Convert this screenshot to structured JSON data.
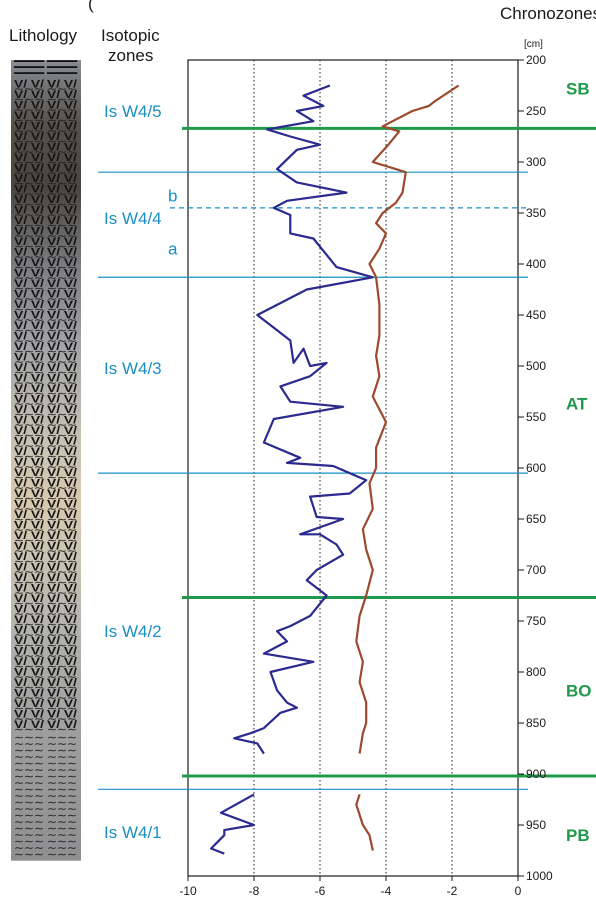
{
  "headers": {
    "top_fragment": "(",
    "lithology": "Lithology",
    "isotopic": "Isotopic",
    "zones": "zones",
    "chronozones": "Chronozones",
    "depth_unit": "[cm]"
  },
  "colors": {
    "isotope_line": "#1b8fc4",
    "chrono_line": "#1f9a4a",
    "series_a": "#2a2a8f",
    "series_b": "#9c4a2e"
  },
  "isotopic_zones": [
    {
      "label": "Is W4/5",
      "depth": 250
    },
    {
      "label": "Is W4/4",
      "depth": 355
    },
    {
      "label": "Is W4/3",
      "depth": 502
    },
    {
      "label": "Is W4/2",
      "depth": 760
    },
    {
      "label": "Is W4/1",
      "depth": 957
    }
  ],
  "subzone_labels": [
    {
      "label": "b",
      "depth": 333
    },
    {
      "label": "a",
      "depth": 385
    }
  ],
  "zone_boundaries": [
    {
      "depth": 310,
      "style": "solid"
    },
    {
      "depth": 345,
      "style": "dashed"
    },
    {
      "depth": 413,
      "style": "solid"
    },
    {
      "depth": 605,
      "style": "solid"
    },
    {
      "depth": 915,
      "style": "solid"
    }
  ],
  "chronozones": [
    {
      "label": "SB",
      "depth": 228
    },
    {
      "label": "AT",
      "depth": 537
    },
    {
      "label": "BO",
      "depth": 818
    },
    {
      "label": "PB",
      "depth": 960
    }
  ],
  "chrono_boundaries": [
    267,
    727,
    902
  ],
  "lithology": {
    "dark_layers": {
      "top": 200,
      "bottom": 218
    },
    "v_layers": {
      "top": 218,
      "bottom": 862
    },
    "wave_layers": {
      "top": 862,
      "bottom": 985
    }
  },
  "chart_data": {
    "type": "line",
    "xlim": [
      -10,
      0
    ],
    "ylim": [
      1000,
      200
    ],
    "y_inverted": true,
    "xticks": [
      -10,
      -8,
      -6,
      -4,
      -2,
      0
    ],
    "yticks": [
      200,
      250,
      300,
      350,
      400,
      450,
      500,
      550,
      600,
      650,
      700,
      750,
      800,
      850,
      900,
      950,
      1000
    ],
    "ylabel": "[cm]",
    "xgrid": [
      -8,
      -6,
      -4,
      -2
    ],
    "series": [
      {
        "color": "#2a2a8f",
        "points": [
          [
            -5.7,
            225
          ],
          [
            -6.5,
            235
          ],
          [
            -5.9,
            245
          ],
          [
            -6.7,
            250
          ],
          [
            -6.2,
            260
          ],
          [
            -7.6,
            268
          ],
          [
            -6.9,
            275
          ],
          [
            -6.0,
            283
          ],
          [
            -6.7,
            288
          ],
          [
            -7.3,
            307
          ],
          [
            -6.7,
            320
          ],
          [
            -5.2,
            330
          ],
          [
            -7.0,
            338
          ],
          [
            -7.4,
            345
          ],
          [
            -6.9,
            352
          ],
          [
            -6.9,
            370
          ],
          [
            -6.2,
            375
          ],
          [
            -5.5,
            403
          ],
          [
            -4.4,
            413
          ],
          [
            -6.4,
            425
          ],
          [
            -7.9,
            450
          ],
          [
            -7.3,
            465
          ],
          [
            -6.9,
            475
          ],
          [
            -6.8,
            497
          ],
          [
            -6.5,
            483
          ],
          [
            -6.3,
            500
          ],
          [
            -5.8,
            497
          ],
          [
            -6.3,
            510
          ],
          [
            -7.2,
            520
          ],
          [
            -6.9,
            535
          ],
          [
            -5.3,
            540
          ],
          [
            -7.4,
            552
          ],
          [
            -7.7,
            575
          ],
          [
            -6.6,
            590
          ],
          [
            -7.0,
            595
          ],
          [
            -5.6,
            598
          ],
          [
            -4.6,
            612
          ],
          [
            -5.1,
            625
          ],
          [
            -6.3,
            628
          ],
          [
            -6.1,
            648
          ],
          [
            -5.3,
            650
          ],
          [
            -6.6,
            665
          ],
          [
            -6.0,
            665
          ],
          [
            -5.5,
            675
          ],
          [
            -5.3,
            685
          ],
          [
            -6.1,
            700
          ],
          [
            -6.4,
            710
          ],
          [
            -5.8,
            725
          ],
          [
            -6.3,
            745
          ],
          [
            -6.9,
            755
          ],
          [
            -7.3,
            760
          ],
          [
            -7.0,
            770
          ],
          [
            -7.7,
            782
          ],
          [
            -6.2,
            790
          ],
          [
            -7.5,
            800
          ],
          [
            -7.3,
            818
          ],
          [
            -7.0,
            830
          ],
          [
            -6.7,
            835
          ],
          [
            -7.2,
            840
          ],
          [
            -7.7,
            855
          ],
          [
            -8.1,
            860
          ],
          [
            -8.6,
            865
          ],
          [
            -7.9,
            870
          ],
          [
            -7.7,
            880
          ]
        ]
      },
      {
        "color": "#9c4a2e",
        "points": [
          [
            -1.8,
            225
          ],
          [
            -2.5,
            240
          ],
          [
            -2.7,
            245
          ],
          [
            -3.2,
            250
          ],
          [
            -4.1,
            265
          ],
          [
            -3.6,
            270
          ],
          [
            -3.9,
            282
          ],
          [
            -4.4,
            300
          ],
          [
            -3.4,
            310
          ],
          [
            -3.5,
            330
          ],
          [
            -3.7,
            340
          ],
          [
            -4.1,
            350
          ],
          [
            -4.3,
            360
          ],
          [
            -4.0,
            370
          ],
          [
            -4.2,
            385
          ],
          [
            -4.5,
            400
          ],
          [
            -4.3,
            413
          ],
          [
            -4.2,
            440
          ],
          [
            -4.2,
            470
          ],
          [
            -4.3,
            490
          ],
          [
            -4.2,
            510
          ],
          [
            -4.4,
            530
          ],
          [
            -4.0,
            555
          ],
          [
            -4.3,
            580
          ],
          [
            -4.3,
            600
          ],
          [
            -4.5,
            615
          ],
          [
            -4.4,
            640
          ],
          [
            -4.7,
            660
          ],
          [
            -4.6,
            680
          ],
          [
            -4.4,
            700
          ],
          [
            -4.6,
            725
          ],
          [
            -4.8,
            745
          ],
          [
            -4.9,
            770
          ],
          [
            -4.7,
            790
          ],
          [
            -4.8,
            810
          ],
          [
            -4.6,
            830
          ],
          [
            -4.6,
            850
          ],
          [
            -4.7,
            860
          ],
          [
            -4.8,
            880
          ]
        ]
      },
      {
        "color": "#2a2a8f",
        "points": [
          [
            -8.0,
            920
          ],
          [
            -9.0,
            938
          ],
          [
            -8.0,
            950
          ],
          [
            -8.9,
            955
          ],
          [
            -8.9,
            960
          ],
          [
            -9.3,
            973
          ],
          [
            -8.9,
            978
          ]
        ]
      },
      {
        "color": "#9c4a2e",
        "points": [
          [
            -4.8,
            920
          ],
          [
            -4.9,
            930
          ],
          [
            -4.7,
            950
          ],
          [
            -4.5,
            960
          ],
          [
            -4.4,
            975
          ]
        ]
      }
    ]
  }
}
